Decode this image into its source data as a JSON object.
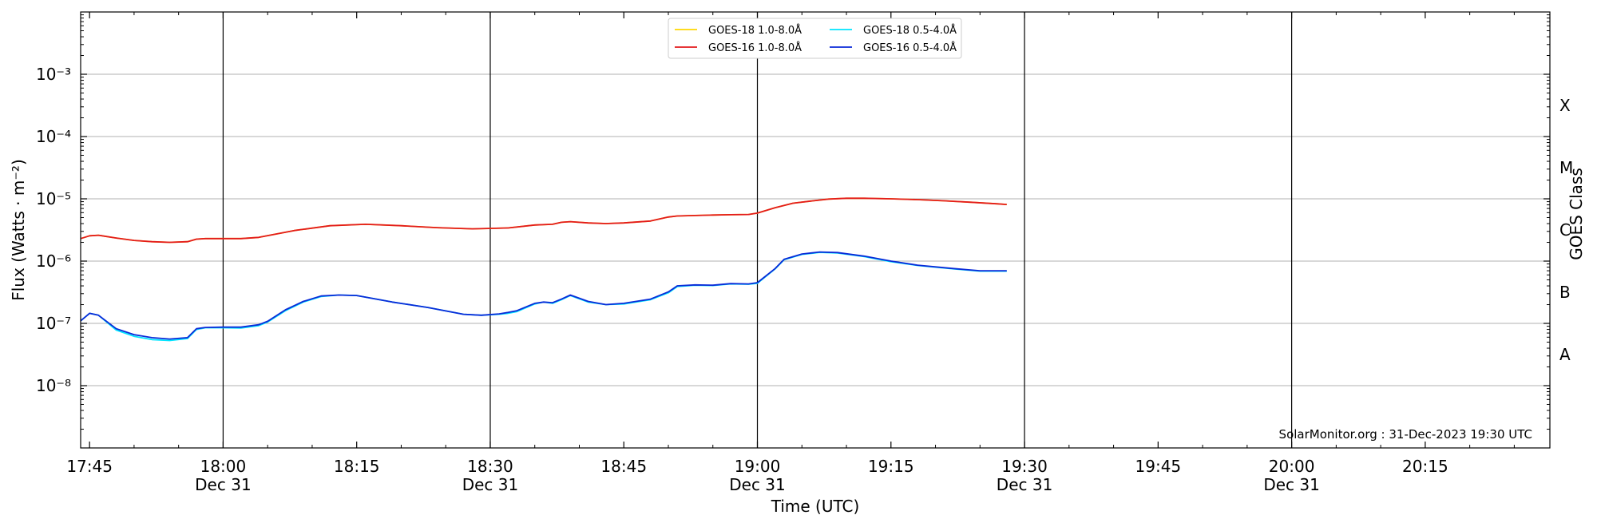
{
  "chart_data": {
    "type": "line",
    "title": "",
    "xlabel": "Time (UTC)",
    "ylabel": "Flux (Watts · m⁻²)",
    "y2label": "GOES Class",
    "yscale": "log",
    "ylim": [
      1e-09,
      0.01
    ],
    "xlim": [
      "17:44",
      "20:29"
    ],
    "grid": "horizontal at y decades",
    "credit": "SolarMonitor.org : 31-Dec-2023 19:30 UTC",
    "legend_placement": "top-center",
    "y_ticks": [
      {
        "exp": -8,
        "label": "10⁻⁸"
      },
      {
        "exp": -7,
        "label": "10⁻⁷"
      },
      {
        "exp": -6,
        "label": "10⁻⁶"
      },
      {
        "exp": -5,
        "label": "10⁻⁵"
      },
      {
        "exp": -4,
        "label": "10⁻⁴"
      },
      {
        "exp": -3,
        "label": "10⁻³"
      }
    ],
    "x_ticks": [
      {
        "time": "17:45",
        "label": "17:45",
        "sub": ""
      },
      {
        "time": "18:00",
        "label": "18:00",
        "sub": "Dec 31"
      },
      {
        "time": "18:15",
        "label": "18:15",
        "sub": ""
      },
      {
        "time": "18:30",
        "label": "18:30",
        "sub": "Dec 31"
      },
      {
        "time": "18:45",
        "label": "18:45",
        "sub": ""
      },
      {
        "time": "19:00",
        "label": "19:00",
        "sub": "Dec 31"
      },
      {
        "time": "19:15",
        "label": "19:15",
        "sub": ""
      },
      {
        "time": "19:30",
        "label": "19:30",
        "sub": "Dec 31"
      },
      {
        "time": "19:45",
        "label": "19:45",
        "sub": ""
      },
      {
        "time": "20:00",
        "label": "20:00",
        "sub": "Dec 31"
      },
      {
        "time": "20:15",
        "label": "20:15",
        "sub": ""
      }
    ],
    "vlines": [
      "18:00",
      "18:30",
      "19:00",
      "19:30",
      "20:00"
    ],
    "class_labels": [
      {
        "label": "A",
        "exp": -7.5
      },
      {
        "label": "B",
        "exp": -6.5
      },
      {
        "label": "C",
        "exp": -5.5
      },
      {
        "label": "M",
        "exp": -4.5
      },
      {
        "label": "X",
        "exp": -3.5
      }
    ],
    "series": [
      {
        "name": "GOES-18 1.0-8.0Å",
        "color": "#ffd700",
        "x": [
          "17:44",
          "17:45",
          "17:46",
          "17:48",
          "17:50",
          "17:52",
          "17:54",
          "17:56",
          "17:57",
          "17:58",
          "18:00",
          "18:02",
          "18:04",
          "18:08",
          "18:12",
          "18:16",
          "18:20",
          "18:24",
          "18:28",
          "18:32",
          "18:35",
          "18:37",
          "18:38",
          "18:39",
          "18:41",
          "18:43",
          "18:45",
          "18:48",
          "18:50",
          "18:51",
          "18:53",
          "18:55",
          "18:57",
          "18:59",
          "19:00",
          "19:02",
          "19:04",
          "19:06",
          "19:08",
          "19:10",
          "19:12",
          "19:15",
          "19:18",
          "19:21",
          "19:24",
          "19:27",
          "19:28"
        ],
        "values": [
          2.3e-06,
          2.55e-06,
          2.6e-06,
          2.35e-06,
          2.15e-06,
          2.05e-06,
          2e-06,
          2.05e-06,
          2.25e-06,
          2.3e-06,
          2.3e-06,
          2.3e-06,
          2.4e-06,
          3.1e-06,
          3.7e-06,
          3.9e-06,
          3.7e-06,
          3.45e-06,
          3.3e-06,
          3.4e-06,
          3.8e-06,
          3.9e-06,
          4.2e-06,
          4.3e-06,
          4.1e-06,
          4e-06,
          4.1e-06,
          4.4e-06,
          5.1e-06,
          5.3e-06,
          5.4e-06,
          5.5e-06,
          5.55e-06,
          5.6e-06,
          5.9e-06,
          7.2e-06,
          8.5e-06,
          9.2e-06,
          9.9e-06,
          1.02e-05,
          1.02e-05,
          1e-05,
          9.7e-06,
          9.3e-06,
          8.8e-06,
          8.3e-06,
          8.1e-06
        ]
      },
      {
        "name": "GOES-16 1.0-8.0Å",
        "color": "#e31a1c",
        "x": [
          "17:44",
          "17:45",
          "17:46",
          "17:48",
          "17:50",
          "17:52",
          "17:54",
          "17:56",
          "17:57",
          "17:58",
          "18:00",
          "18:02",
          "18:04",
          "18:08",
          "18:12",
          "18:16",
          "18:20",
          "18:24",
          "18:28",
          "18:32",
          "18:35",
          "18:37",
          "18:38",
          "18:39",
          "18:41",
          "18:43",
          "18:45",
          "18:48",
          "18:50",
          "18:51",
          "18:53",
          "18:55",
          "18:57",
          "18:59",
          "19:00",
          "19:02",
          "19:04",
          "19:06",
          "19:08",
          "19:10",
          "19:12",
          "19:15",
          "19:18",
          "19:21",
          "19:24",
          "19:27",
          "19:28"
        ],
        "values": [
          2.3e-06,
          2.55e-06,
          2.6e-06,
          2.35e-06,
          2.15e-06,
          2.05e-06,
          2e-06,
          2.05e-06,
          2.25e-06,
          2.3e-06,
          2.3e-06,
          2.3e-06,
          2.4e-06,
          3.1e-06,
          3.7e-06,
          3.9e-06,
          3.7e-06,
          3.45e-06,
          3.3e-06,
          3.4e-06,
          3.8e-06,
          3.9e-06,
          4.2e-06,
          4.3e-06,
          4.1e-06,
          4e-06,
          4.1e-06,
          4.4e-06,
          5.1e-06,
          5.3e-06,
          5.4e-06,
          5.5e-06,
          5.55e-06,
          5.6e-06,
          5.9e-06,
          7.2e-06,
          8.5e-06,
          9.2e-06,
          9.9e-06,
          1.02e-05,
          1.02e-05,
          1e-05,
          9.7e-06,
          9.3e-06,
          8.8e-06,
          8.3e-06,
          8.1e-06
        ]
      },
      {
        "name": "GOES-18 0.5-4.0Å",
        "color": "#00e5ff",
        "x": [
          "17:44",
          "17:45",
          "17:46",
          "17:48",
          "17:50",
          "17:52",
          "17:54",
          "17:56",
          "17:57",
          "17:58",
          "18:00",
          "18:02",
          "18:04",
          "18:05",
          "18:07",
          "18:09",
          "18:11",
          "18:13",
          "18:15",
          "18:19",
          "18:23",
          "18:27",
          "18:29",
          "18:31",
          "18:32",
          "18:33",
          "18:35",
          "18:36",
          "18:37",
          "18:38",
          "18:39",
          "18:41",
          "18:43",
          "18:45",
          "18:48",
          "18:50",
          "18:51",
          "18:53",
          "18:55",
          "18:57",
          "18:59",
          "19:00",
          "19:02",
          "19:03",
          "19:05",
          "19:07",
          "19:09",
          "19:12",
          "19:15",
          "19:18",
          "19:22",
          "19:25",
          "19:28"
        ],
        "values": [
          1.1e-07,
          1.45e-07,
          1.35e-07,
          7.8e-08,
          6.2e-08,
          5.5e-08,
          5.3e-08,
          5.7e-08,
          8e-08,
          8.5e-08,
          8.5e-08,
          8.4e-08,
          9.2e-08,
          1.05e-07,
          1.6e-07,
          2.2e-07,
          2.7e-07,
          2.85e-07,
          2.8e-07,
          2.2e-07,
          1.8e-07,
          1.4e-07,
          1.35e-07,
          1.4e-07,
          1.45e-07,
          1.55e-07,
          2.05e-07,
          2.2e-07,
          2.1e-07,
          2.4e-07,
          2.8e-07,
          2.2e-07,
          2e-07,
          2.05e-07,
          2.4e-07,
          3.1e-07,
          3.9e-07,
          4.1e-07,
          4.05e-07,
          4.3e-07,
          4.25e-07,
          4.4e-07,
          7.5e-07,
          1.05e-06,
          1.28e-06,
          1.38e-06,
          1.35e-06,
          1.18e-06,
          9.8e-07,
          8.5e-07,
          7.5e-07,
          6.9e-07,
          6.9e-07
        ]
      },
      {
        "name": "GOES-16 0.5-4.0Å",
        "color": "#0a2ad8",
        "x": [
          "17:44",
          "17:45",
          "17:46",
          "17:48",
          "17:50",
          "17:52",
          "17:54",
          "17:56",
          "17:57",
          "17:58",
          "18:00",
          "18:02",
          "18:04",
          "18:05",
          "18:07",
          "18:09",
          "18:11",
          "18:13",
          "18:15",
          "18:19",
          "18:23",
          "18:27",
          "18:29",
          "18:31",
          "18:32",
          "18:33",
          "18:35",
          "18:36",
          "18:37",
          "18:38",
          "18:39",
          "18:41",
          "18:43",
          "18:45",
          "18:48",
          "18:50",
          "18:51",
          "18:53",
          "18:55",
          "18:57",
          "18:59",
          "19:00",
          "19:02",
          "19:03",
          "19:05",
          "19:07",
          "19:09",
          "19:12",
          "19:15",
          "19:18",
          "19:22",
          "19:25",
          "19:28"
        ],
        "values": [
          1.1e-07,
          1.45e-07,
          1.35e-07,
          8.2e-08,
          6.6e-08,
          5.9e-08,
          5.6e-08,
          5.9e-08,
          8.2e-08,
          8.6e-08,
          8.7e-08,
          8.7e-08,
          9.5e-08,
          1.08e-07,
          1.65e-07,
          2.25e-07,
          2.75e-07,
          2.85e-07,
          2.8e-07,
          2.2e-07,
          1.8e-07,
          1.4e-07,
          1.35e-07,
          1.42e-07,
          1.5e-07,
          1.6e-07,
          2.1e-07,
          2.2e-07,
          2.15e-07,
          2.45e-07,
          2.85e-07,
          2.25e-07,
          2e-07,
          2.1e-07,
          2.45e-07,
          3.2e-07,
          4e-07,
          4.15e-07,
          4.1e-07,
          4.35e-07,
          4.3e-07,
          4.5e-07,
          7.6e-07,
          1.07e-06,
          1.3e-06,
          1.4e-06,
          1.37e-06,
          1.2e-06,
          1e-06,
          8.6e-07,
          7.6e-07,
          7e-07,
          7e-07
        ]
      }
    ]
  }
}
